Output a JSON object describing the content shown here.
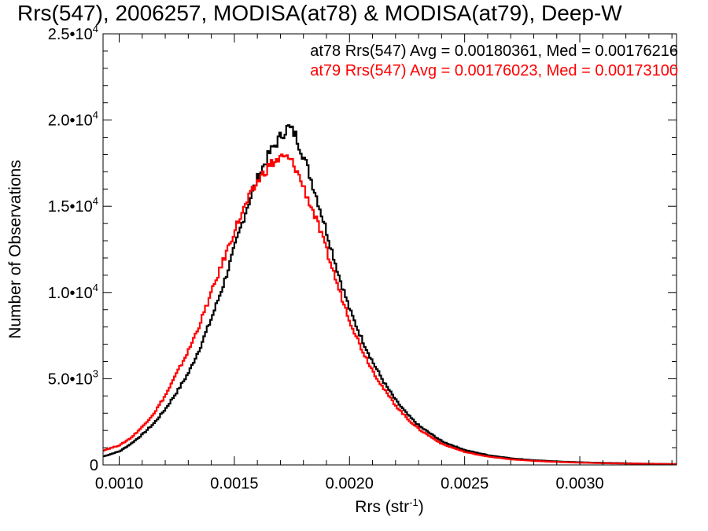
{
  "title": "Rrs(547), 2006257, MODISA(at78) & MODISA(at79), Deep-W",
  "chart_data": {
    "type": "line",
    "step": true,
    "title": "Rrs(547), 2006257, MODISA(at78) & MODISA(at79), Deep-W",
    "xlabel": {
      "base": "Rrs (str",
      "sup": "-1",
      "close": ")"
    },
    "ylabel": "Number of Observations",
    "xlim": [
      0.00093,
      0.00342
    ],
    "ylim": [
      0,
      25000
    ],
    "x_ticks": [
      {
        "value": 0.001,
        "label": "0.0010"
      },
      {
        "value": 0.0015,
        "label": "0.0015"
      },
      {
        "value": 0.002,
        "label": "0.0020"
      },
      {
        "value": 0.0025,
        "label": "0.0025"
      },
      {
        "value": 0.003,
        "label": "0.0030"
      }
    ],
    "y_ticks": [
      {
        "value": 0,
        "mant": "0",
        "exp": ""
      },
      {
        "value": 5000,
        "mant": "5.0•10",
        "exp": "3"
      },
      {
        "value": 10000,
        "mant": "1.0•10",
        "exp": "4"
      },
      {
        "value": 15000,
        "mant": "1.5•10",
        "exp": "4"
      },
      {
        "value": 20000,
        "mant": "2.0•10",
        "exp": "4"
      },
      {
        "value": 25000,
        "mant": "2.5•10",
        "exp": "4"
      }
    ],
    "annotations": [
      {
        "text": "at78 Rrs(547) Avg = 0.00180361, Med = 0.00176216",
        "color": "#000000"
      },
      {
        "text": "at79 Rrs(547) Avg = 0.00176023, Med = 0.00173100",
        "color": "#ff0000"
      }
    ],
    "series": [
      {
        "name": "at78",
        "color": "#000000",
        "points": [
          [
            0.00093,
            500
          ],
          [
            0.001,
            800
          ],
          [
            0.00105,
            1250
          ],
          [
            0.0011,
            1800
          ],
          [
            0.00115,
            2450
          ],
          [
            0.0012,
            3300
          ],
          [
            0.00125,
            4300
          ],
          [
            0.0013,
            5400
          ],
          [
            0.00135,
            6900
          ],
          [
            0.0014,
            8600
          ],
          [
            0.00145,
            10500
          ],
          [
            0.0015,
            12700
          ],
          [
            0.00155,
            14900
          ],
          [
            0.0016,
            16700
          ],
          [
            0.00165,
            18100
          ],
          [
            0.0017,
            19100
          ],
          [
            0.00173,
            19600
          ],
          [
            0.00176,
            19200
          ],
          [
            0.0018,
            17800
          ],
          [
            0.00185,
            15700
          ],
          [
            0.0019,
            13400
          ],
          [
            0.00195,
            11000
          ],
          [
            0.002,
            8900
          ],
          [
            0.00205,
            7300
          ],
          [
            0.0021,
            5900
          ],
          [
            0.00215,
            4700
          ],
          [
            0.0022,
            3700
          ],
          [
            0.00225,
            2900
          ],
          [
            0.0023,
            2250
          ],
          [
            0.0024,
            1350
          ],
          [
            0.0025,
            850
          ],
          [
            0.0026,
            560
          ],
          [
            0.0027,
            380
          ],
          [
            0.0028,
            270
          ],
          [
            0.0029,
            200
          ],
          [
            0.003,
            150
          ],
          [
            0.0031,
            120
          ],
          [
            0.0032,
            95
          ],
          [
            0.0033,
            70
          ],
          [
            0.00342,
            50
          ]
        ]
      },
      {
        "name": "at79",
        "color": "#ff0000",
        "points": [
          [
            0.00093,
            850
          ],
          [
            0.001,
            1150
          ],
          [
            0.00105,
            1600
          ],
          [
            0.0011,
            2250
          ],
          [
            0.00115,
            3050
          ],
          [
            0.0012,
            4100
          ],
          [
            0.00125,
            5400
          ],
          [
            0.0013,
            6700
          ],
          [
            0.00135,
            8300
          ],
          [
            0.0014,
            10100
          ],
          [
            0.00145,
            11900
          ],
          [
            0.0015,
            13700
          ],
          [
            0.00155,
            15200
          ],
          [
            0.0016,
            16500
          ],
          [
            0.00165,
            17400
          ],
          [
            0.0017,
            17800
          ],
          [
            0.00173,
            17800
          ],
          [
            0.00176,
            17300
          ],
          [
            0.0018,
            16000
          ],
          [
            0.00185,
            14300
          ],
          [
            0.0019,
            12300
          ],
          [
            0.00195,
            10200
          ],
          [
            0.002,
            8300
          ],
          [
            0.00205,
            6700
          ],
          [
            0.0021,
            5400
          ],
          [
            0.00215,
            4300
          ],
          [
            0.0022,
            3400
          ],
          [
            0.00225,
            2650
          ],
          [
            0.0023,
            2050
          ],
          [
            0.0024,
            1200
          ],
          [
            0.0025,
            740
          ],
          [
            0.0026,
            480
          ],
          [
            0.0027,
            320
          ],
          [
            0.0028,
            230
          ],
          [
            0.0029,
            170
          ],
          [
            0.003,
            130
          ],
          [
            0.0031,
            100
          ],
          [
            0.0032,
            80
          ],
          [
            0.0033,
            60
          ],
          [
            0.00342,
            45
          ]
        ]
      }
    ]
  }
}
